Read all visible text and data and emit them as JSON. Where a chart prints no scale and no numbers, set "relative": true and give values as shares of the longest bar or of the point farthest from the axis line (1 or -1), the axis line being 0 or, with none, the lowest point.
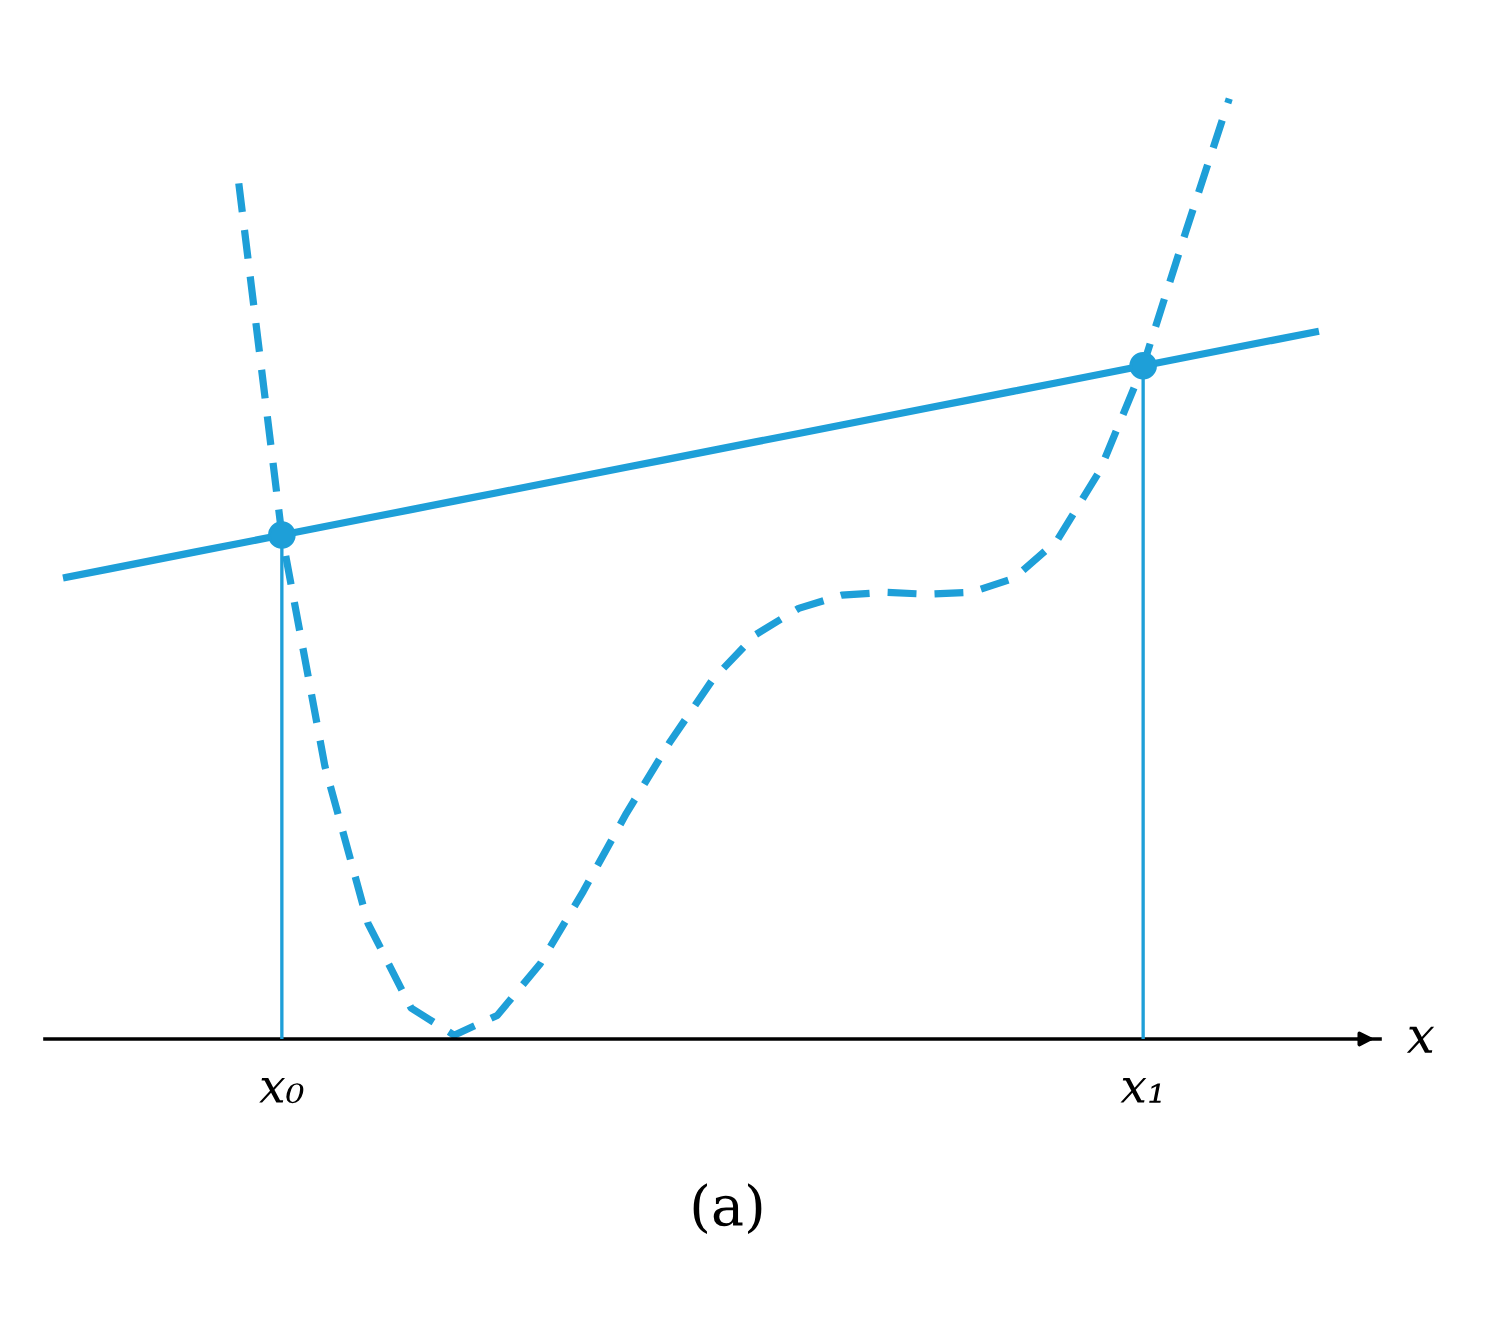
{
  "chart_data": {
    "type": "line",
    "relative": true,
    "xlabel": "x",
    "grid": false,
    "legend": false,
    "tick_labels": "x",
    "categories": [
      null,
      null,
      null,
      null,
      null,
      "x₀",
      null,
      null,
      null,
      null,
      null,
      null,
      null,
      null,
      null,
      null,
      null,
      null,
      null,
      null,
      null,
      null,
      null,
      null,
      null,
      "x₁",
      null,
      null,
      null,
      null,
      null
    ],
    "series": [
      {
        "line_style": "dashed",
        "marker": "none",
        "color": "#1e9fd8",
        "values": [
          null,
          null,
          null,
          null,
          0.91,
          0.536,
          0.29,
          0.123,
          0.033,
          0.004,
          0.025,
          0.08,
          0.157,
          0.24,
          0.315,
          0.382,
          0.43,
          0.458,
          0.472,
          0.475,
          0.473,
          0.475,
          0.49,
          0.53,
          0.605,
          0.716,
          0.86,
          1.0,
          null,
          null,
          null
        ]
      },
      {
        "line_style": "solid",
        "marker": "none",
        "color": "#1e9fd8",
        "values": [
          0.491,
          0.5,
          0.509,
          0.518,
          0.527,
          0.536,
          0.545,
          0.554,
          0.563,
          0.572,
          0.581,
          0.59,
          0.599,
          0.608,
          0.617,
          0.626,
          0.635,
          0.644,
          0.653,
          0.662,
          0.671,
          0.68,
          0.689,
          0.698,
          0.707,
          0.716,
          0.725,
          0.734,
          0.743,
          0.752,
          null
        ]
      },
      {
        "type": "scatter",
        "marker": "circle",
        "color": "#1e9fd8",
        "values": [
          null,
          null,
          null,
          null,
          null,
          0.536,
          null,
          null,
          null,
          null,
          null,
          null,
          null,
          null,
          null,
          null,
          null,
          null,
          null,
          null,
          null,
          null,
          null,
          null,
          null,
          0.716,
          null,
          null,
          null,
          null,
          null
        ]
      }
    ],
    "annotations": [
      "(a)"
    ]
  }
}
